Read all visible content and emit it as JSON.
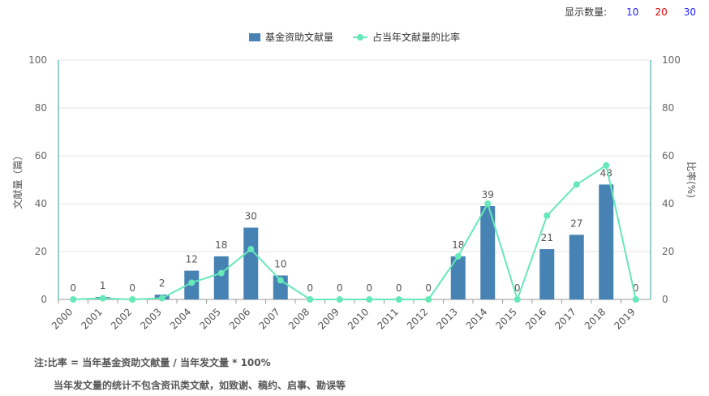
{
  "controls": {
    "label": "显示数量:",
    "options": [
      {
        "text": "10",
        "color": "#1a1aff"
      },
      {
        "text": "20",
        "color": "#e60000"
      },
      {
        "text": "30",
        "color": "#1a1aff"
      }
    ]
  },
  "notes": {
    "line1": "注:比率 = 当年基金资助文献量 / 当年发文量 * 100%",
    "line2": "当年发文量的统计不包含资讯类文献，如致谢、稿约、启事、勘误等"
  },
  "colors": {
    "bar": "#4682b4",
    "line": "#66e8b8",
    "axis": "#2aa198"
  },
  "chart_data": {
    "type": "bar",
    "categories": [
      "2000",
      "2001",
      "2002",
      "2003",
      "2004",
      "2005",
      "2006",
      "2007",
      "2008",
      "2009",
      "2010",
      "2011",
      "2012",
      "2013",
      "2014",
      "2015",
      "2016",
      "2017",
      "2018",
      "2019"
    ],
    "series": [
      {
        "name": "基金资助文献量",
        "type": "bar",
        "values": [
          0,
          1,
          0,
          2,
          12,
          18,
          30,
          10,
          0,
          0,
          0,
          0,
          0,
          18,
          39,
          0,
          21,
          27,
          48,
          0
        ]
      },
      {
        "name": "占当年文献量的比率",
        "type": "line",
        "values": [
          0,
          0.5,
          0,
          0.5,
          7,
          11,
          21,
          8,
          0,
          0,
          0,
          0,
          0,
          18,
          40,
          0,
          35,
          48,
          56,
          0
        ]
      }
    ],
    "ylabel": "文献量（篇）",
    "y2label": "比率(%)",
    "ylim": [
      0,
      100
    ],
    "y2lim": [
      0,
      100
    ],
    "yticks": [
      0,
      20,
      40,
      60,
      80,
      100
    ],
    "grid": true,
    "legend_position": "top-center"
  }
}
